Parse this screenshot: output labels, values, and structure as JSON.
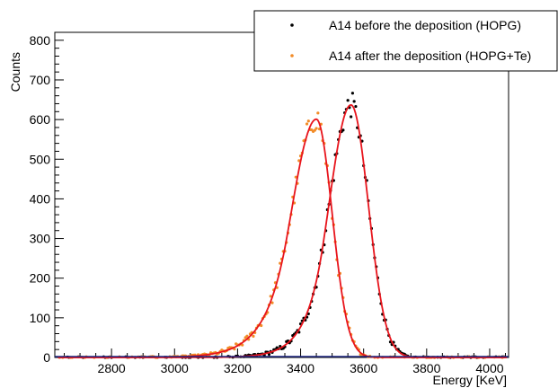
{
  "chart_data": {
    "type": "scatter",
    "title": "",
    "xlabel": "Energy [KeV]",
    "ylabel": "Counts",
    "xlim": [
      2620,
      4060
    ],
    "ylim": [
      0,
      820
    ],
    "xticks": [
      2800,
      3000,
      3200,
      3400,
      3600,
      3800,
      4000
    ],
    "yticks": [
      0,
      100,
      200,
      300,
      400,
      500,
      600,
      700,
      800
    ],
    "legend_position": "top-right",
    "grid": false,
    "series": [
      {
        "name": "A14 before the deposition (HOPG)",
        "marker_color": "#000000",
        "fit_color": "#e8141c",
        "peak_x": 3560,
        "peak_y": 637
      },
      {
        "name": "A14 after the deposition (HOPG+Te)",
        "marker_color": "#f28c28",
        "fit_color": "#e8141c",
        "peak_x": 3450,
        "peak_y": 601
      }
    ]
  }
}
